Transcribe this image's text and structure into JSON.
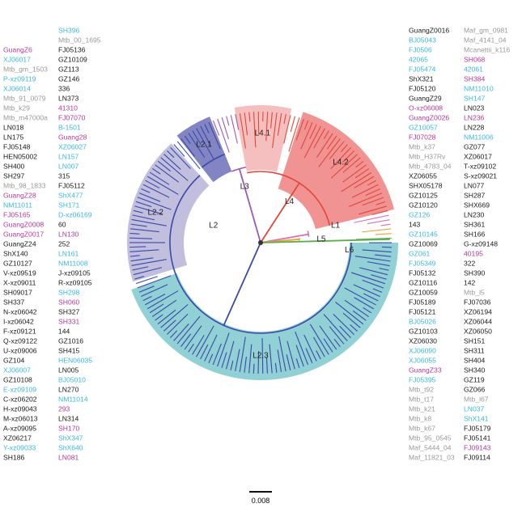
{
  "colors": {
    "k": "#1a1a1a",
    "c": "#3cb8dc",
    "m": "#b23a98",
    "g": "#9a9a9a",
    "L1": "#d870b8",
    "L2": "#3a4aa8",
    "L3": "#9a5ab8",
    "L4": "#e0483a",
    "L5": "#f0a030",
    "L6": "#5ab04a",
    "root": "#333333",
    "wedge_L2_1": "#6d6fb8",
    "wedge_L2_2": "#b7b3d8",
    "wedge_L2_3": "#7ec8cc",
    "wedge_L4_1": "#f4b4b4",
    "wedge_L4_2": "#ee8080"
  },
  "clades": {
    "L1": "L1",
    "L2": "L2",
    "L3": "L3",
    "L4": "L4",
    "L5": "L5",
    "L6": "L6",
    "L2_1": "L2.1",
    "L2_2": "L2.2",
    "L2_3": "L2.3",
    "L4_1": "L4.1",
    "L4_2": "L4.2"
  },
  "scale_bar": "0.008",
  "leaves": [
    [
      "GuangZ0016",
      "k"
    ],
    [
      "BJ05043",
      "c"
    ],
    [
      "FJ0506",
      "c"
    ],
    [
      "42065",
      "c"
    ],
    [
      "FJ05474",
      "c"
    ],
    [
      "ShX321",
      "k"
    ],
    [
      "FJ05120",
      "k"
    ],
    [
      "GuangZ29",
      "k"
    ],
    [
      "O-xz06008",
      "m"
    ],
    [
      "GuangZ0026",
      "m"
    ],
    [
      "GZ10057",
      "c"
    ],
    [
      "FJ07028",
      "m"
    ],
    [
      "Mtb_k37",
      "g"
    ],
    [
      "Mtb_H37Rv",
      "g"
    ],
    [
      "Mtb_4783_04",
      "g"
    ],
    [
      "XZ06055",
      "k"
    ],
    [
      "SHX05178",
      "k"
    ],
    [
      "GZ10125",
      "k"
    ],
    [
      "GZ10120",
      "k"
    ],
    [
      "GZ126",
      "c"
    ],
    [
      "143",
      "k"
    ],
    [
      "GZ10145",
      "c"
    ],
    [
      "GZ10069",
      "k"
    ],
    [
      "GZ061",
      "c"
    ],
    [
      "FJ05349",
      "c"
    ],
    [
      "FJ05132",
      "k"
    ],
    [
      "GZ10116",
      "k"
    ],
    [
      "GZ10059",
      "k"
    ],
    [
      "FJ05189",
      "k"
    ],
    [
      "FJ05121",
      "k"
    ],
    [
      "BJ05026",
      "c"
    ],
    [
      "GZ10103",
      "k"
    ],
    [
      "XZ06030",
      "k"
    ],
    [
      "XJ06090",
      "c"
    ],
    [
      "XJ06055",
      "c"
    ],
    [
      "GuangZ33",
      "m"
    ],
    [
      "FJ05395",
      "c"
    ],
    [
      "Mtb_t92",
      "g"
    ],
    [
      "Mtb_t17",
      "g"
    ],
    [
      "Mtb_k21",
      "g"
    ],
    [
      "Mtb_k8",
      "g"
    ],
    [
      "Mtb_k67",
      "g"
    ],
    [
      "Mtb_95_0545",
      "g"
    ],
    [
      "Maf_5444_04",
      "g"
    ],
    [
      "Maf_11821_03",
      "g"
    ],
    [
      "Maf_gm_0981",
      "g"
    ],
    [
      "Maf_4141_04",
      "g"
    ],
    [
      "Mcanettii_k116",
      "g"
    ],
    [
      "SH068",
      "m"
    ],
    [
      "42061",
      "c"
    ],
    [
      "SH384",
      "m"
    ],
    [
      "NM11010",
      "c"
    ],
    [
      "SH147",
      "c"
    ],
    [
      "LN023",
      "k"
    ],
    [
      "LN236",
      "m"
    ],
    [
      "LN228",
      "k"
    ],
    [
      "NM11006",
      "c"
    ],
    [
      "GZ077",
      "k"
    ],
    [
      "XZ06017",
      "k"
    ],
    [
      "T-xz09102",
      "k"
    ],
    [
      "S-xz09021",
      "k"
    ],
    [
      "LN077",
      "k"
    ],
    [
      "SH287",
      "k"
    ],
    [
      "SHX669",
      "k"
    ],
    [
      "LN230",
      "k"
    ],
    [
      "SH361",
      "k"
    ],
    [
      "SH166",
      "k"
    ],
    [
      "G-xz09148",
      "k"
    ],
    [
      "40195",
      "m"
    ],
    [
      "322",
      "k"
    ],
    [
      "SH390",
      "k"
    ],
    [
      "142",
      "k"
    ],
    [
      "Mtb_l5",
      "g"
    ],
    [
      "FJ07036",
      "k"
    ],
    [
      "XZ06194",
      "k"
    ],
    [
      "XZ06044",
      "k"
    ],
    [
      "XZ06050",
      "k"
    ],
    [
      "SH151",
      "k"
    ],
    [
      "SH311",
      "k"
    ],
    [
      "SH404",
      "k"
    ],
    [
      "SH340",
      "k"
    ],
    [
      "GZ119",
      "k"
    ],
    [
      "GZ066",
      "k"
    ],
    [
      "Mtb_l67",
      "g"
    ],
    [
      "LN037",
      "c"
    ],
    [
      "ShX141",
      "c"
    ],
    [
      "FJ05179",
      "k"
    ],
    [
      "FJ05141",
      "k"
    ],
    [
      "FJ09143",
      "m"
    ],
    [
      "FJ09114",
      "k"
    ],
    [
      "LN081",
      "m"
    ],
    [
      "ShX640",
      "c"
    ],
    [
      "ShX347",
      "c"
    ],
    [
      "SH170",
      "m"
    ],
    [
      "LN314",
      "k"
    ],
    [
      "293",
      "m"
    ],
    [
      "NM11014",
      "c"
    ],
    [
      "LN270",
      "k"
    ],
    [
      "BJ05010",
      "c"
    ],
    [
      "LN005",
      "k"
    ],
    [
      "HEN06035",
      "c"
    ],
    [
      "SH415",
      "k"
    ],
    [
      "GZ1016",
      "k"
    ],
    [
      "144",
      "k"
    ],
    [
      "SH331",
      "m"
    ],
    [
      "SH327",
      "k"
    ],
    [
      "SH060",
      "m"
    ],
    [
      "SH298",
      "c"
    ],
    [
      "R-xz09105",
      "k"
    ],
    [
      "J-xz09105",
      "k"
    ],
    [
      "NM11008",
      "c"
    ],
    [
      "LN161",
      "c"
    ],
    [
      "252",
      "k"
    ],
    [
      "LN130",
      "m"
    ],
    [
      "60",
      "k"
    ],
    [
      "D-xz06169",
      "c"
    ],
    [
      "SH171",
      "c"
    ],
    [
      "ShX477",
      "c"
    ],
    [
      "FJ05112",
      "k"
    ],
    [
      "315",
      "k"
    ],
    [
      "LN007",
      "c"
    ],
    [
      "LN157",
      "c"
    ],
    [
      "XZ06027",
      "c"
    ],
    [
      "Guang28",
      "m"
    ],
    [
      "B-1501",
      "c"
    ],
    [
      "FJ07070",
      "m"
    ],
    [
      "41310",
      "m"
    ],
    [
      "LN373",
      "k"
    ],
    [
      "336",
      "k"
    ],
    [
      "GZ146",
      "k"
    ],
    [
      "GZ113",
      "k"
    ],
    [
      "GZ10109",
      "k"
    ],
    [
      "FJ05136",
      "k"
    ],
    [
      "Mtb_00_1695",
      "g"
    ],
    [
      "SH396",
      "c"
    ],
    [
      "SH186",
      "k"
    ],
    [
      "Y-xz09033",
      "c"
    ],
    [
      "XZ06217",
      "k"
    ],
    [
      "A-xz09095",
      "k"
    ],
    [
      "M-xz06013",
      "k"
    ],
    [
      "H-xz09043",
      "k"
    ],
    [
      "C-xz06202",
      "k"
    ],
    [
      "E-xz09109",
      "c"
    ],
    [
      "GZ10108",
      "k"
    ],
    [
      "XJ06007",
      "c"
    ],
    [
      "GZ104",
      "k"
    ],
    [
      "U-xz09006",
      "k"
    ],
    [
      "Q-xz09122",
      "k"
    ],
    [
      "F-xz09121",
      "k"
    ],
    [
      "I-xz06042",
      "k"
    ],
    [
      "N-xz06042",
      "k"
    ],
    [
      "SH337",
      "k"
    ],
    [
      "SH09017",
      "k"
    ],
    [
      "X-xz09011",
      "k"
    ],
    [
      "V-xz09519",
      "k"
    ],
    [
      "GZ10127",
      "k"
    ],
    [
      "ShX140",
      "k"
    ],
    [
      "GuangZ24",
      "k"
    ],
    [
      "GuangZ0017",
      "m"
    ],
    [
      "GuangZ0008",
      "m"
    ],
    [
      "FJ05165",
      "m"
    ],
    [
      "NM11011",
      "c"
    ],
    [
      "GuangZ28",
      "m"
    ],
    [
      "Mtb_98_1833",
      "g"
    ],
    [
      "SH297",
      "k"
    ],
    [
      "SH400",
      "k"
    ],
    [
      "HEN05002",
      "k"
    ],
    [
      "FJ05148",
      "k"
    ],
    [
      "LN175",
      "k"
    ],
    [
      "LN018",
      "k"
    ],
    [
      "Mtb_m47000a",
      "g"
    ],
    [
      "Mtb_k29",
      "g"
    ],
    [
      "Mtb_91_0079",
      "g"
    ],
    [
      "XJ06014",
      "c"
    ],
    [
      "P-xz09119",
      "c"
    ],
    [
      "Mtb_gm_1503",
      "g"
    ],
    [
      "XJ06017",
      "c"
    ],
    [
      "GuangZ6",
      "m"
    ]
  ]
}
